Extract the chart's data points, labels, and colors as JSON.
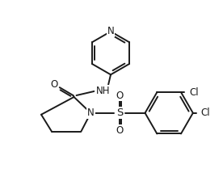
{
  "bg_color": "#ffffff",
  "line_color": "#1a1a1a",
  "line_width": 1.4,
  "font_size": 8.5,
  "figsize": [
    2.76,
    2.4
  ],
  "dpi": 100,
  "xlim": [
    0,
    276
  ],
  "ylim": [
    0,
    240
  ]
}
